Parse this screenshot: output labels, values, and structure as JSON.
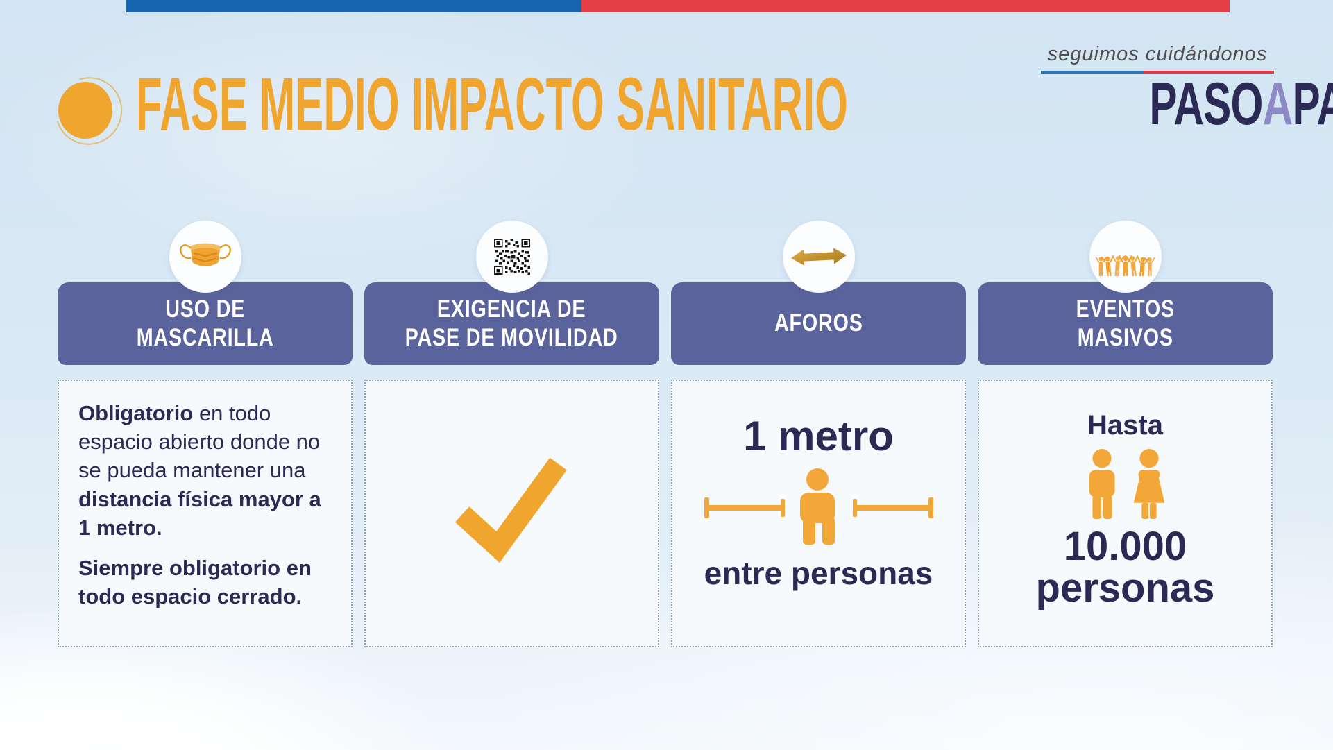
{
  "header": {
    "title": "FASE MEDIO IMPACTO SANITARIO"
  },
  "brand": {
    "tagline": "seguimos cuidándonos",
    "word1": "PASO",
    "word2": "A",
    "word3": "PASO"
  },
  "colors": {
    "accent_orange": "#F0A52F",
    "navy_text": "#2B2A55",
    "header_slate": "#5B639D",
    "flag_blue": "#1566AE",
    "flag_red": "#E63E47",
    "logo_lavender": "#8C89C5"
  },
  "columns": [
    {
      "id": "uso-de-mascarilla",
      "icon": "mask-icon",
      "header": "USO DE\nMASCARILLA",
      "body": {
        "p1": [
          {
            "t": "Obligatorio",
            "b": true
          },
          {
            "t": " en todo espacio abierto donde no se pueda mantener una ",
            "b": false
          },
          {
            "t": "distancia física mayor a 1 metro.",
            "b": true
          }
        ],
        "p2": [
          {
            "t": "Siempre obligatorio en todo espacio cerrado.",
            "b": true
          }
        ]
      }
    },
    {
      "id": "exigencia-pase-movilidad",
      "icon": "qr-code-icon",
      "header": "EXIGENCIA DE\nPASE DE MOVILIDAD",
      "body": {
        "check_icon": "check-icon"
      }
    },
    {
      "id": "aforos",
      "icon": "double-arrow-icon",
      "header": "AFOROS",
      "body": {
        "big": "1 metro",
        "pictogram": "distance-between-people-icon",
        "caption": "entre personas"
      }
    },
    {
      "id": "eventos-masivos",
      "icon": "crowd-icon",
      "header": "EVENTOS\nMASIVOS",
      "body": {
        "top": "Hasta",
        "pictogram": "two-people-icon",
        "big": "10.000",
        "big2": "personas"
      }
    }
  ]
}
